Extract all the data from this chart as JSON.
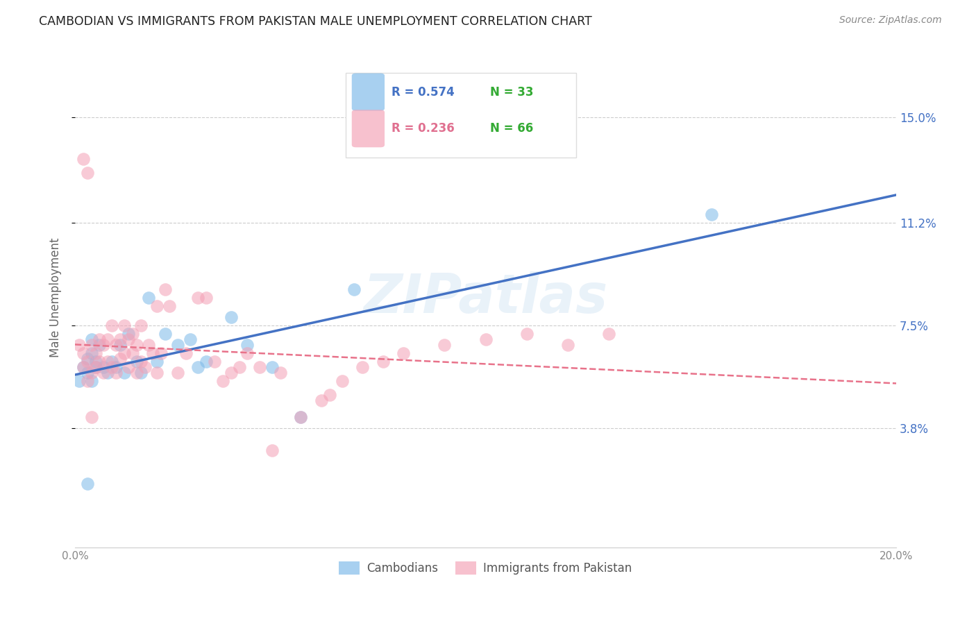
{
  "title": "CAMBODIAN VS IMMIGRANTS FROM PAKISTAN MALE UNEMPLOYMENT CORRELATION CHART",
  "source": "Source: ZipAtlas.com",
  "ylabel": "Male Unemployment",
  "watermark": "ZIPatlas",
  "xlim": [
    0.0,
    0.2
  ],
  "ylim": [
    -0.005,
    0.175
  ],
  "ytick_labels_right": [
    "15.0%",
    "11.2%",
    "7.5%",
    "3.8%"
  ],
  "ytick_vals_right": [
    0.15,
    0.112,
    0.075,
    0.038
  ],
  "color_cam": "#7ab8e8",
  "color_pak": "#f4a0b5",
  "color_line_cam": "#4472c4",
  "color_line_pak": "#e8728a",
  "legend_r_cam": "R = 0.574",
  "legend_n_cam": "N = 33",
  "legend_r_pak": "R = 0.236",
  "legend_n_pak": "N = 66",
  "legend_color_r": "#4472c4",
  "legend_color_n": "#33aa33",
  "label_cambodians": "Cambodians",
  "label_pakistan": "Immigrants from Pakistan",
  "series_cambodian_x": [
    0.001,
    0.002,
    0.003,
    0.003,
    0.004,
    0.004,
    0.004,
    0.005,
    0.005,
    0.006,
    0.007,
    0.008,
    0.009,
    0.01,
    0.011,
    0.012,
    0.013,
    0.015,
    0.016,
    0.018,
    0.02,
    0.022,
    0.025,
    0.028,
    0.03,
    0.032,
    0.038,
    0.042,
    0.048,
    0.055,
    0.068,
    0.155,
    0.003
  ],
  "series_cambodian_y": [
    0.055,
    0.06,
    0.058,
    0.063,
    0.055,
    0.065,
    0.07,
    0.06,
    0.062,
    0.068,
    0.06,
    0.058,
    0.062,
    0.06,
    0.068,
    0.058,
    0.072,
    0.062,
    0.058,
    0.085,
    0.062,
    0.072,
    0.068,
    0.07,
    0.06,
    0.062,
    0.078,
    0.068,
    0.06,
    0.042,
    0.088,
    0.115,
    0.018
  ],
  "series_pakistan_x": [
    0.001,
    0.002,
    0.002,
    0.003,
    0.003,
    0.004,
    0.004,
    0.005,
    0.005,
    0.006,
    0.006,
    0.007,
    0.007,
    0.008,
    0.008,
    0.009,
    0.009,
    0.01,
    0.01,
    0.011,
    0.011,
    0.012,
    0.012,
    0.013,
    0.013,
    0.014,
    0.014,
    0.015,
    0.015,
    0.016,
    0.016,
    0.017,
    0.018,
    0.019,
    0.02,
    0.02,
    0.021,
    0.022,
    0.023,
    0.025,
    0.027,
    0.03,
    0.032,
    0.034,
    0.036,
    0.038,
    0.04,
    0.042,
    0.045,
    0.05,
    0.055,
    0.06,
    0.065,
    0.07,
    0.075,
    0.08,
    0.09,
    0.1,
    0.11,
    0.12,
    0.13,
    0.003,
    0.004,
    0.048,
    0.062,
    0.002
  ],
  "series_pakistan_y": [
    0.068,
    0.06,
    0.065,
    0.055,
    0.062,
    0.058,
    0.068,
    0.06,
    0.065,
    0.07,
    0.062,
    0.058,
    0.068,
    0.062,
    0.07,
    0.06,
    0.075,
    0.058,
    0.068,
    0.063,
    0.07,
    0.065,
    0.075,
    0.06,
    0.07,
    0.065,
    0.072,
    0.058,
    0.068,
    0.062,
    0.075,
    0.06,
    0.068,
    0.065,
    0.082,
    0.058,
    0.065,
    0.088,
    0.082,
    0.058,
    0.065,
    0.085,
    0.085,
    0.062,
    0.055,
    0.058,
    0.06,
    0.065,
    0.06,
    0.058,
    0.042,
    0.048,
    0.055,
    0.06,
    0.062,
    0.065,
    0.068,
    0.07,
    0.072,
    0.068,
    0.072,
    0.13,
    0.042,
    0.03,
    0.05,
    0.135
  ],
  "title_color": "#222222",
  "source_color": "#888888",
  "grid_color": "#cccccc",
  "background_color": "#ffffff"
}
